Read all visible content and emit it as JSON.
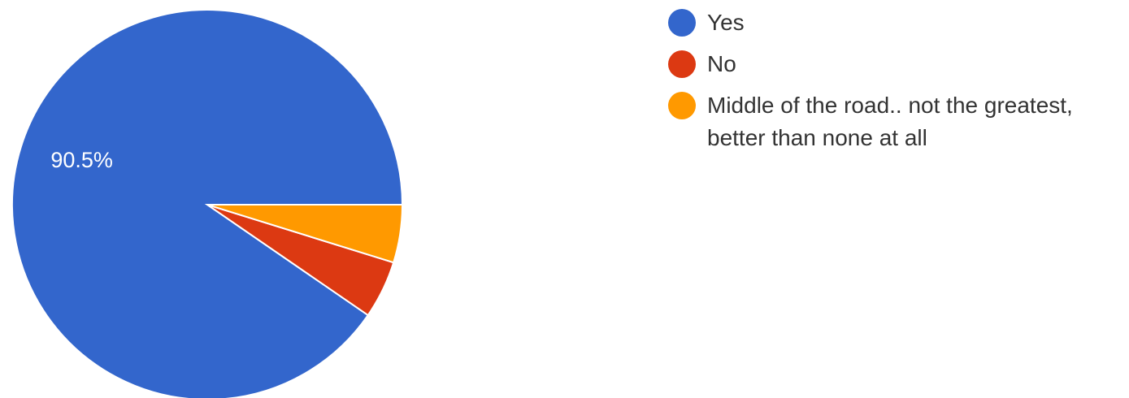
{
  "chart_data": {
    "type": "pie",
    "slices": [
      {
        "label": "Yes",
        "value": 90.5,
        "color": "#3366cc",
        "data_label": "90.5%"
      },
      {
        "label": "No",
        "value": 4.8,
        "color": "#dc3912",
        "data_label": ""
      },
      {
        "label": "Middle of the road.. not the greatest, better than none at all",
        "value": 4.8,
        "color": "#ff9900",
        "data_label": ""
      }
    ],
    "legend_position": "right",
    "legend": [
      {
        "lines": [
          "Yes"
        ]
      },
      {
        "lines": [
          "No"
        ]
      },
      {
        "lines": [
          "Middle of the road.. not the greatest,",
          "better than none at all"
        ]
      }
    ],
    "start_angle": "3 o'clock",
    "direction": "counterclockwise"
  }
}
